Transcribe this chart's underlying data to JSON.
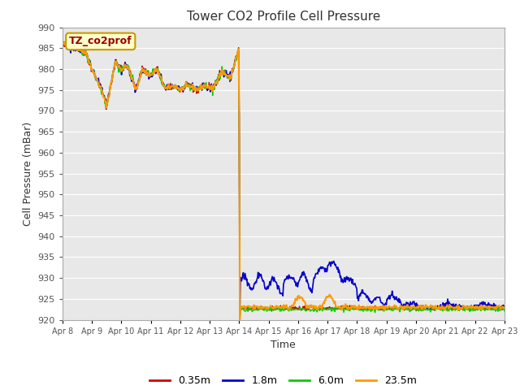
{
  "title": "Tower CO2 Profile Cell Pressure",
  "ylabel": "Cell Pressure (mBar)",
  "xlabel": "Time",
  "ylim": [
    920,
    990
  ],
  "yticks": [
    920,
    925,
    930,
    935,
    940,
    945,
    950,
    955,
    960,
    965,
    970,
    975,
    980,
    985,
    990
  ],
  "fig_bg": "#ffffff",
  "plot_bg": "#e8e8e8",
  "legend_label": "TZ_co2prof",
  "legend_box_color": "#ffffcc",
  "legend_box_edge": "#cc9900",
  "legend_text_color": "#990000",
  "series_labels": [
    "0.35m",
    "1.8m",
    "6.0m",
    "23.5m"
  ],
  "series_colors": [
    "#cc0000",
    "#0000cc",
    "#00cc00",
    "#ff9900"
  ],
  "x_tick_labels": [
    "Apr 8",
    "Apr 9",
    "Apr 10",
    "Apr 11",
    "Apr 12",
    "Apr 13",
    "Apr 14",
    "Apr 15",
    "Apr 16",
    "Apr 17",
    "Apr 18",
    "Apr 19",
    "Apr 20",
    "Apr 21",
    "Apr 22",
    "Apr 23"
  ],
  "grid_color": "#ffffff",
  "tick_color": "#555555",
  "spine_color": "#aaaaaa"
}
